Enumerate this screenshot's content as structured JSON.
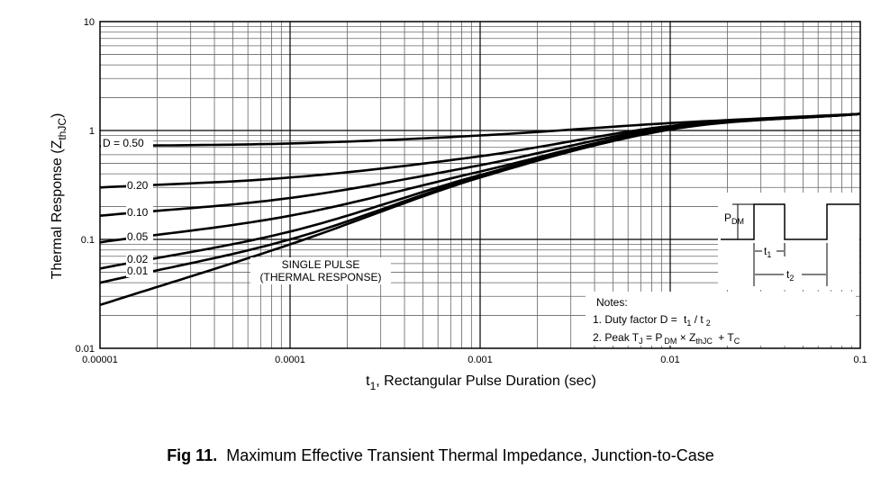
{
  "chart_data": {
    "type": "line",
    "x_scale": "log",
    "y_scale": "log",
    "xlim": [
      1e-05,
      0.1
    ],
    "ylim": [
      0.01,
      10
    ],
    "grid": true,
    "xlabel_main": "t",
    "xlabel_sub": "1",
    "xlabel_rest": ", Rectangular Pulse Duration (sec)",
    "ylabel_main": "Thermal Response  (Z",
    "ylabel_sub": "thJC",
    "ylabel_end": ")",
    "x_tick_labels": [
      "0.00001",
      "0.0001",
      "0.001",
      "0.01",
      "0.1"
    ],
    "y_tick_labels": [
      "0.01",
      "0.1",
      "1",
      "10"
    ],
    "series": [
      {
        "name": "D = 0.50",
        "x": [
          1e-05,
          0.0001,
          0.001,
          0.01,
          0.1
        ],
        "y": [
          0.72,
          0.76,
          0.9,
          1.17,
          1.42
        ]
      },
      {
        "name": "0.20",
        "x": [
          1e-05,
          0.0001,
          0.001,
          0.01,
          0.1
        ],
        "y": [
          0.3,
          0.37,
          0.58,
          1.1,
          1.42
        ]
      },
      {
        "name": "0.10",
        "x": [
          1e-05,
          0.0001,
          0.001,
          0.01,
          0.1
        ],
        "y": [
          0.165,
          0.24,
          0.48,
          1.08,
          1.42
        ]
      },
      {
        "name": "0.05",
        "x": [
          1e-05,
          0.0001,
          0.001,
          0.01,
          0.1
        ],
        "y": [
          0.094,
          0.165,
          0.42,
          1.05,
          1.42
        ]
      },
      {
        "name": "0.02",
        "x": [
          1e-05,
          0.0001,
          0.001,
          0.01,
          0.1
        ],
        "y": [
          0.054,
          0.118,
          0.39,
          1.04,
          1.42
        ]
      },
      {
        "name": "0.01",
        "x": [
          1e-05,
          0.0001,
          0.001,
          0.01,
          0.1
        ],
        "y": [
          0.04,
          0.1,
          0.38,
          1.03,
          1.42
        ]
      },
      {
        "name": "SINGLE PULSE (THERMAL RESPONSE)",
        "x": [
          1e-05,
          0.0001,
          0.001,
          0.01,
          0.1
        ],
        "y": [
          0.025,
          0.09,
          0.37,
          1.02,
          1.42
        ]
      }
    ],
    "single_pulse_label_1": "SINGLE PULSE",
    "single_pulse_label_2": "(THERMAL RESPONSE)",
    "notes_title": "Notes:",
    "note1_text": "1. Duty factor D =",
    "note1_t1": "t",
    "note1_t1sub": "1",
    "note1_slash": "/ t",
    "note1_t2sub": "2",
    "note2_text": "2. Peak T",
    "note2_tjsub": "J",
    "note2_eq": "= P",
    "note2_pdmsub": "DM",
    "note2_times": "× Z",
    "note2_zsub": "thJC",
    "note2_plus": "+ T",
    "note2_tcsub": "C",
    "inset_pdm": "P",
    "inset_pdm_sub": "DM",
    "inset_t1": "t",
    "inset_t1_sub": "1",
    "inset_t2": "t",
    "inset_t2_sub": "2"
  },
  "caption": {
    "fig_label": "Fig 11.",
    "title": "Maximum Effective Transient Thermal Impedance, Junction-to-Case"
  }
}
